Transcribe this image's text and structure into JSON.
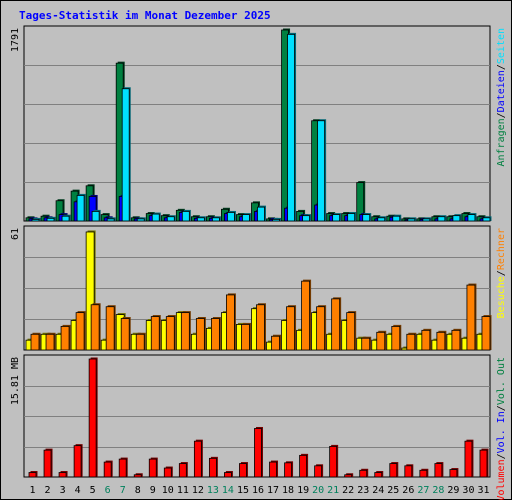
{
  "title": "Tages-Statistik im Monat Dezember 2025",
  "colors": {
    "anfragen": "#008040",
    "dateien": "#0000ff",
    "seiten": "#00e0ff",
    "besuche": "#ffff00",
    "rechner": "#ff8000",
    "volumen": "#ff0000",
    "grid": "#808080",
    "weekend_label": "#00805c"
  },
  "chart_data": [
    {
      "type": "bar",
      "panel": "hits",
      "ymax_label": "1791",
      "ylim": [
        0,
        1791
      ],
      "legend": [
        "Anfragen",
        "/",
        "Dateien",
        "/",
        "Seiten"
      ],
      "series": [
        {
          "name": "Anfragen",
          "values": [
            30,
            45,
            190,
            280,
            330,
            60,
            1480,
            30,
            70,
            50,
            100,
            40,
            40,
            110,
            60,
            170,
            20,
            1791,
            90,
            940,
            70,
            70,
            360,
            40,
            45,
            20,
            20,
            40,
            40,
            70,
            40
          ]
        },
        {
          "name": "Dateien",
          "values": [
            20,
            30,
            60,
            180,
            230,
            30,
            230,
            20,
            50,
            30,
            80,
            25,
            25,
            70,
            40,
            90,
            15,
            120,
            50,
            150,
            50,
            50,
            60,
            20,
            35,
            10,
            15,
            20,
            20,
            40,
            20
          ]
        },
        {
          "name": "Seiten",
          "values": [
            15,
            25,
            45,
            240,
            90,
            20,
            1240,
            20,
            65,
            40,
            90,
            30,
            30,
            80,
            60,
            130,
            15,
            1750,
            50,
            940,
            60,
            70,
            60,
            30,
            45,
            20,
            20,
            40,
            50,
            60,
            30
          ]
        }
      ]
    },
    {
      "type": "bar",
      "panel": "visits",
      "ymax_label": "61",
      "ylim": [
        0,
        61
      ],
      "legend": [
        "Besuche",
        "/",
        "Rechner"
      ],
      "series": [
        {
          "name": "Besuche",
          "values": [
            5,
            8,
            8,
            15,
            60,
            5,
            18,
            8,
            15,
            15,
            19,
            8,
            11,
            19,
            13,
            21,
            4,
            15,
            10,
            19,
            8,
            15,
            6,
            5,
            8,
            1,
            8,
            5,
            8,
            6,
            8
          ]
        },
        {
          "name": "Rechner",
          "values": [
            8,
            8,
            12,
            19,
            23,
            22,
            16,
            8,
            17,
            17,
            19,
            16,
            16,
            28,
            13,
            23,
            7,
            22,
            35,
            22,
            26,
            19,
            6,
            9,
            12,
            8,
            10,
            9,
            10,
            33,
            17
          ]
        }
      ]
    },
    {
      "type": "bar",
      "panel": "volume",
      "ymax_label": "15.81 MB",
      "ylim": [
        0,
        15.81
      ],
      "legend": [
        "Volumen",
        "/",
        "Vol. In",
        "/",
        "Vol. Out"
      ],
      "series": [
        {
          "name": "Volumen",
          "values": [
            0.6,
            3.6,
            0.6,
            4.2,
            15.81,
            2.0,
            2.4,
            0.3,
            2.4,
            1.2,
            1.8,
            4.8,
            2.5,
            0.6,
            1.8,
            6.5,
            2.0,
            1.9,
            2.9,
            1.5,
            4.1,
            0.3,
            0.9,
            0.6,
            1.8,
            1.5,
            0.9,
            1.8,
            1.0,
            4.8,
            3.6
          ]
        }
      ]
    }
  ],
  "x_labels": [
    "1",
    "2",
    "3",
    "4",
    "5",
    "6",
    "7",
    "8",
    "9",
    "10",
    "11",
    "12",
    "13",
    "14",
    "15",
    "16",
    "17",
    "18",
    "19",
    "20",
    "21",
    "22",
    "23",
    "24",
    "25",
    "26",
    "27",
    "28",
    "29",
    "30",
    "31"
  ],
  "weekend_days": [
    6,
    7,
    13,
    14,
    20,
    21,
    27,
    28
  ]
}
